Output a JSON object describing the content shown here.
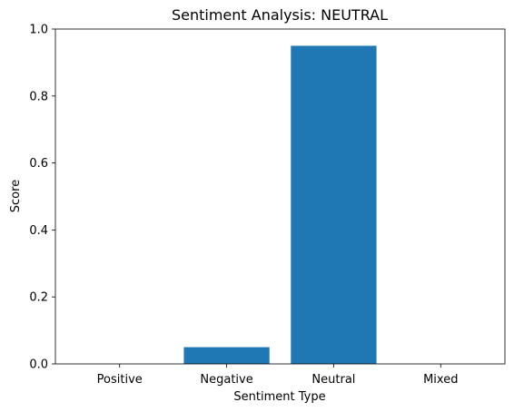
{
  "chart_data": {
    "type": "bar",
    "title": "Sentiment Analysis: NEUTRAL",
    "xlabel": "Sentiment Type",
    "ylabel": "Score",
    "categories": [
      "Positive",
      "Negative",
      "Neutral",
      "Mixed"
    ],
    "values": [
      0.0,
      0.05,
      0.95,
      0.0
    ],
    "ylim": [
      0,
      1.0
    ],
    "yticks": [
      "0.0",
      "0.2",
      "0.4",
      "0.6",
      "0.8",
      "1.0"
    ],
    "grid": false,
    "legend": "none",
    "bar_color": "#1f77b4"
  }
}
